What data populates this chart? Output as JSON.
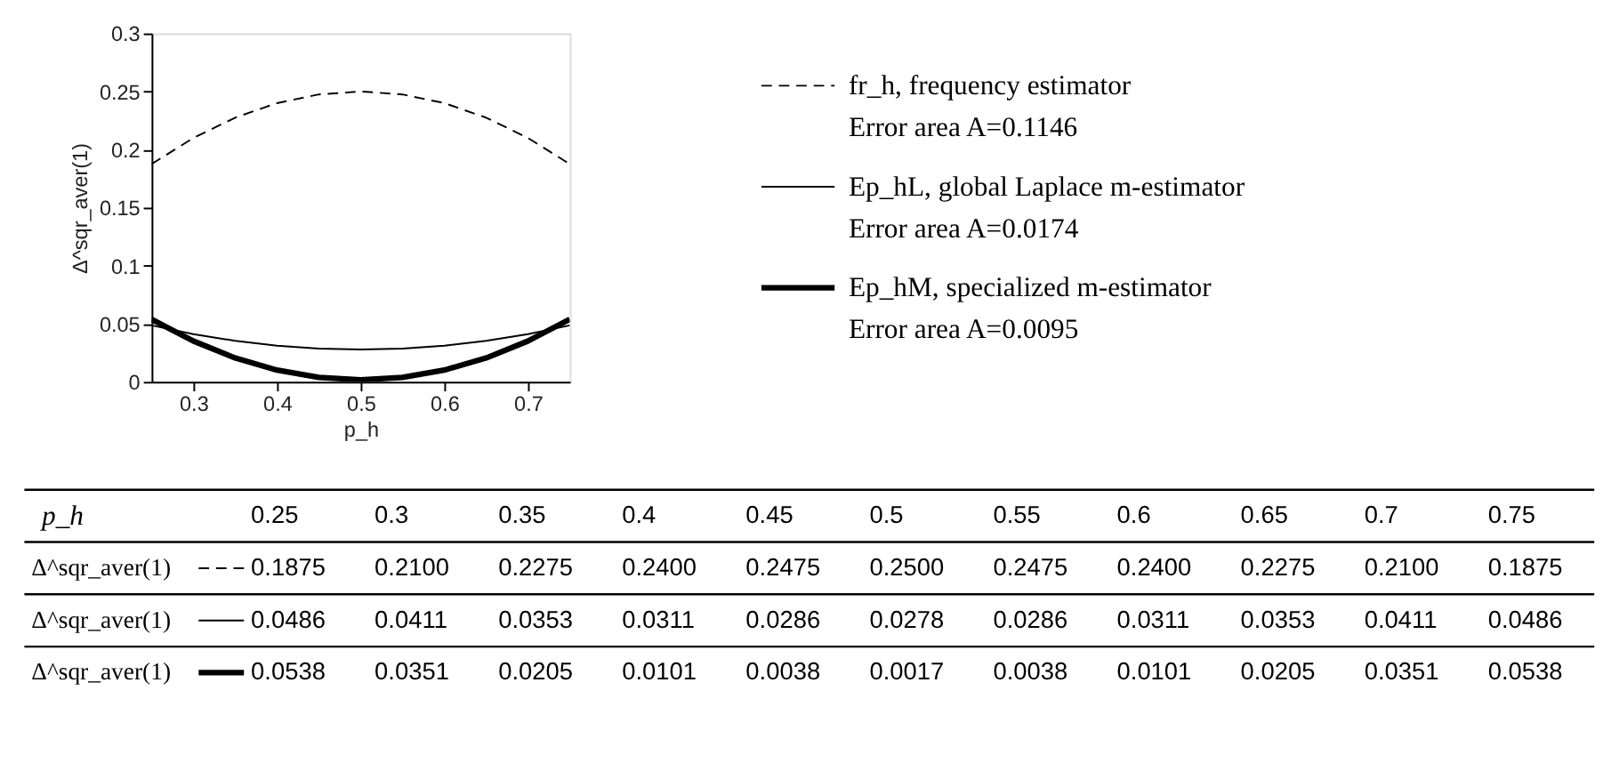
{
  "chart_data": [
    {
      "type": "line",
      "xlabel": "p_h",
      "ylabel": "Δ^sqr_aver(1)",
      "x": [
        0.25,
        0.3,
        0.35,
        0.4,
        0.45,
        0.5,
        0.55,
        0.6,
        0.65,
        0.7,
        0.75
      ],
      "xlim": [
        0.25,
        0.75
      ],
      "xticks": [
        0.3,
        0.4,
        0.5,
        0.6,
        0.7
      ],
      "ylim": [
        0,
        0.3
      ],
      "yticks": [
        0,
        0.05,
        0.1,
        0.15,
        0.2,
        0.25,
        0.3
      ],
      "series": [
        {
          "name": "fr_h, frequency estimator",
          "color": "#000000",
          "line_style": "dashed",
          "values": [
            0.1875,
            0.21,
            0.2275,
            0.24,
            0.2475,
            0.25,
            0.2475,
            0.24,
            0.2275,
            0.21,
            0.1875
          ]
        },
        {
          "name": "Ep_hL, global Laplace m-estimator",
          "color": "#000000",
          "line_style": "solid",
          "values": [
            0.0486,
            0.0411,
            0.0353,
            0.0311,
            0.0286,
            0.0278,
            0.0286,
            0.0311,
            0.0353,
            0.0411,
            0.0486
          ]
        },
        {
          "name": "Ep_hM, specialized m-estimator",
          "color": "#000000",
          "line_style": "solid",
          "values": [
            0.0538,
            0.0351,
            0.0205,
            0.0101,
            0.0038,
            0.0017,
            0.0038,
            0.0101,
            0.0205,
            0.0351,
            0.0538
          ]
        }
      ],
      "annotations": [
        "Error area A=0.1146",
        "Error area A=0.0174",
        "Error area A=0.0095"
      ],
      "grid": false,
      "legend": "right",
      "marker": "none"
    },
    {
      "type": "heatmap",
      "xlabel": "p_h",
      "categories": [
        "0.25",
        "0.3",
        "0.35",
        "0.4",
        "0.45",
        "0.5",
        "0.55",
        "0.6",
        "0.65",
        "0.7",
        "0.75"
      ],
      "y_categories": [
        "Δ^sqr_aver(1)",
        "Δ^sqr_aver(1)",
        "Δ^sqr_aver(1)"
      ],
      "cells": [
        [
          0.1875,
          0.21,
          0.2275,
          0.24,
          0.2475,
          0.25,
          0.2475,
          0.24,
          0.2275,
          0.21,
          0.1875
        ],
        [
          0.0486,
          0.0411,
          0.0353,
          0.0311,
          0.0286,
          0.0278,
          0.0286,
          0.0311,
          0.0353,
          0.0411,
          0.0486
        ],
        [
          0.0538,
          0.0351,
          0.0205,
          0.0101,
          0.0038,
          0.0017,
          0.0038,
          0.0101,
          0.0205,
          0.0351,
          0.0538
        ]
      ],
      "cell_labels": [
        [
          "0.1875",
          "0.2100",
          "0.2275",
          "0.2400",
          "0.2475",
          "0.2500",
          "0.2475",
          "0.2400",
          "0.2275",
          "0.2100",
          "0.1875"
        ],
        [
          "0.0486",
          "0.0411",
          "0.0353",
          "0.0311",
          "0.0286",
          "0.0278",
          "0.0286",
          "0.0311",
          "0.0353",
          "0.0411",
          "0.0486"
        ],
        [
          "0.0538",
          "0.0351",
          "0.0205",
          "0.0101",
          "0.0038",
          "0.0017",
          "0.0038",
          "0.0101",
          "0.0205",
          "0.0351",
          "0.0538"
        ]
      ],
      "data_labels": true
    }
  ]
}
